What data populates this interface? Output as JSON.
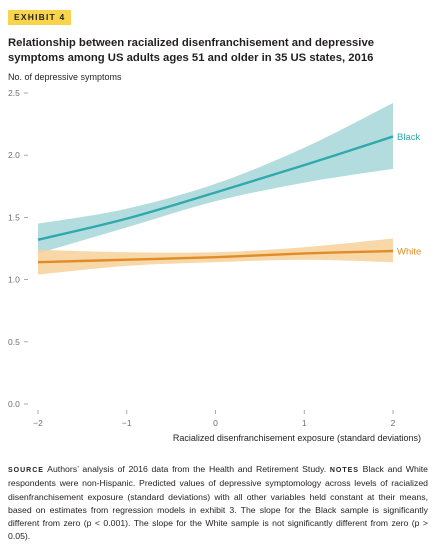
{
  "exhibit_label": "EXHIBIT 4",
  "chart_data": {
    "type": "line",
    "title": "Relationship between racialized disenfranchisement and depressive symptoms among US adults ages 51 and older in 35 US states, 2016",
    "ylabel": "No. of depressive symptoms",
    "xlabel": "Racialized disenfranchisement exposure (standard deviations)",
    "xlim": [
      -2,
      2
    ],
    "ylim": [
      0,
      2.5
    ],
    "x_ticks": [
      -2,
      -1,
      0,
      1,
      2
    ],
    "x_tick_labels": [
      "−2",
      "−1",
      "0",
      "1",
      "2"
    ],
    "y_ticks": [
      0,
      0.5,
      1.0,
      1.5,
      2.0,
      2.5
    ],
    "y_tick_labels": [
      "0.0",
      "0.5",
      "1.0",
      "1.5",
      "2.0",
      "2.5"
    ],
    "grid": false,
    "series": [
      {
        "name": "Black",
        "color": "#2fa9ad",
        "band_color": "#a6d6d8",
        "x": [
          -2,
          -1,
          0,
          1,
          2
        ],
        "y": [
          1.32,
          1.49,
          1.7,
          1.92,
          2.15
        ],
        "lower": [
          1.21,
          1.42,
          1.63,
          1.78,
          1.89
        ],
        "upper": [
          1.45,
          1.57,
          1.77,
          2.06,
          2.42
        ]
      },
      {
        "name": "White",
        "color": "#e08d28",
        "band_color": "#f7d09a",
        "x": [
          -2,
          -1,
          0,
          1,
          2
        ],
        "y": [
          1.14,
          1.16,
          1.18,
          1.21,
          1.23
        ],
        "lower": [
          1.04,
          1.11,
          1.14,
          1.16,
          1.14
        ],
        "upper": [
          1.24,
          1.22,
          1.22,
          1.26,
          1.33
        ]
      }
    ]
  },
  "source_label": "SOURCE",
  "source_text": " Authors’ analysis of 2016 data from the Health and Retirement Study. ",
  "notes_label": "NOTES",
  "notes_text": " Black and White respondents were non-Hispanic. Predicted values of depressive symptomology across levels of racialized disenfranchisement exposure (standard deviations) with all other variables held constant at their means, based on estimates from regression models in exhibit 3. The slope for the Black sample is significantly different from zero (p < 0.001). The slope for the White sample is not significantly different from zero (p > 0.05)."
}
